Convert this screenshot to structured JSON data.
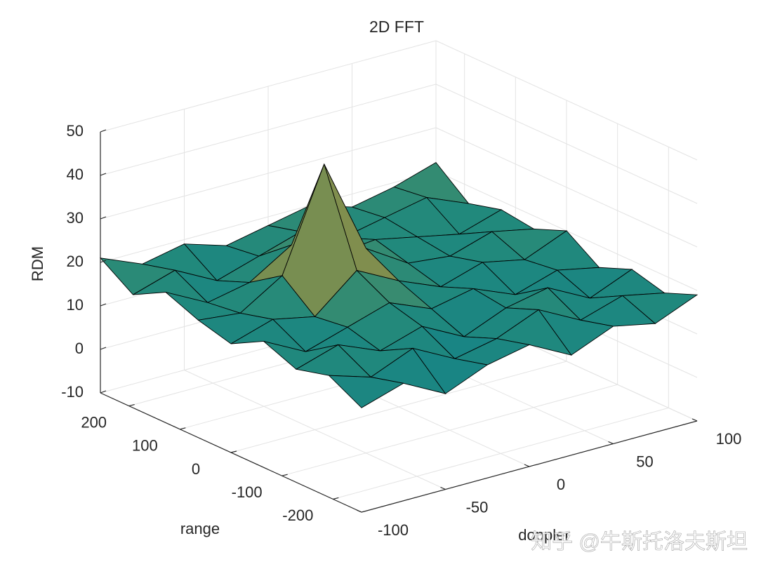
{
  "chart_data": {
    "type": "surface",
    "title": "2D FFT",
    "xlabel": "doppler",
    "ylabel": "range",
    "zlabel": "RDM",
    "watermark": "知乎 @牛斯托洛夫斯坦",
    "x": [
      -100,
      -75,
      -50,
      -25,
      0,
      25,
      50,
      75,
      100
    ],
    "y": [
      -256,
      -192,
      -128,
      -64,
      0,
      64,
      128,
      192,
      256
    ],
    "z": [
      [
        14,
        17,
        12,
        16,
        18,
        13,
        17,
        15,
        19
      ],
      [
        18,
        15,
        19,
        14,
        16,
        20,
        15,
        18,
        16
      ],
      [
        16,
        19,
        15,
        18,
        13,
        17,
        19,
        14,
        18
      ],
      [
        19,
        14,
        17,
        20,
        16,
        18,
        14,
        17,
        15
      ],
      [
        15,
        18,
        16,
        24,
        19,
        15,
        18,
        16,
        20
      ],
      [
        17,
        16,
        22,
        45,
        23,
        17,
        16,
        19,
        17
      ],
      [
        20,
        15,
        17,
        23,
        18,
        19,
        17,
        15,
        18
      ],
      [
        16,
        19,
        14,
        17,
        20,
        16,
        18,
        20,
        16
      ],
      [
        21,
        17,
        19,
        16,
        18,
        20,
        17,
        19,
        22
      ]
    ],
    "xlim": [
      -100,
      100
    ],
    "ylim": [
      -256,
      256
    ],
    "zlim": [
      -10,
      50
    ],
    "xticks": [
      -100,
      -50,
      0,
      50,
      100
    ],
    "yticks": [
      -200,
      -100,
      0,
      100,
      200
    ],
    "zticks": [
      -10,
      0,
      10,
      20,
      30,
      40,
      50
    ],
    "clim": [
      -10,
      45
    ],
    "colormap": [
      "#352a87",
      "#0f5cdd",
      "#1481d6",
      "#06a4ca",
      "#2eb7a4",
      "#87bf77",
      "#d1bb59",
      "#fec832",
      "#f9fb0e"
    ],
    "grid": true
  }
}
